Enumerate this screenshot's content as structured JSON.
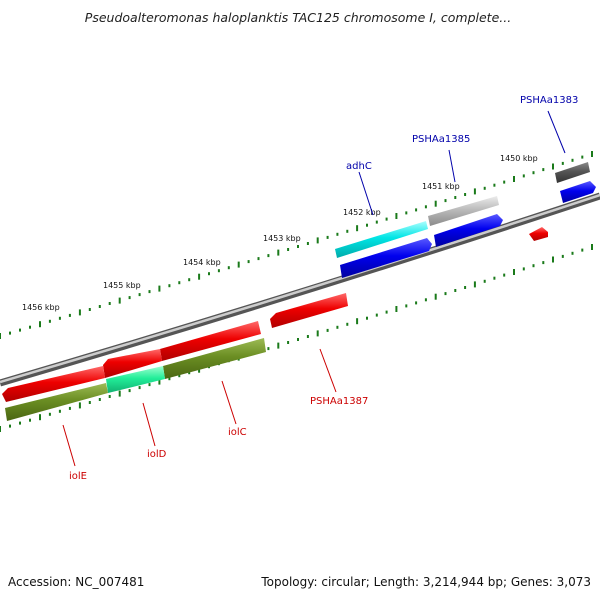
{
  "title": "Pseudoalteromonas haloplanktis TAC125 chromosome I, complete...",
  "footer": {
    "accession": "Accession: NC_007481",
    "summary": "Topology: circular; Length: 3,214,944 bp; Genes: 3,073"
  },
  "colors": {
    "backbone": "#808080",
    "tick_mark": "#1a7a1a",
    "label_blue": "#0000aa",
    "label_red": "#cc0000",
    "forward_gene": "#0000ee",
    "reverse_gene": "#ee0000",
    "olive_gene": "#6b8e23",
    "cyan_gene": "#00e5e5",
    "silver_gene": "#bbbbbb",
    "dark_gene": "#555555",
    "mint_gene": "#22ee99"
  },
  "kbp_labels": [
    "1450 kbp",
    "1451 kbp",
    "1452 kbp",
    "1453 kbp",
    "1454 kbp",
    "1455 kbp",
    "1456 kbp"
  ],
  "gene_labels": {
    "top": [
      "PSHAa1383",
      "PSHAa1385",
      "adhC"
    ],
    "bottom": [
      "PSHAa1387",
      "iolC",
      "iolD",
      "iolE"
    ]
  }
}
